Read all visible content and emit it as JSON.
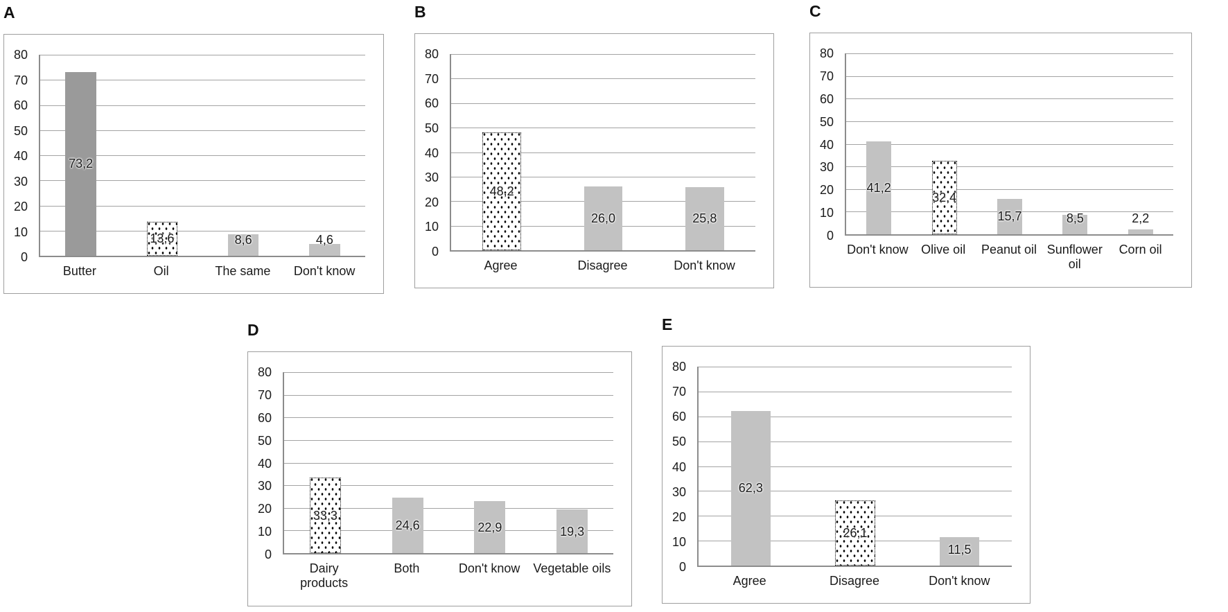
{
  "figure": {
    "description": "Five-panel survey results bar charts",
    "panel_labels": [
      "A",
      "B",
      "C",
      "D",
      "E"
    ]
  },
  "colors": {
    "background": "#ffffff",
    "bar_dark": "#9a9a9a",
    "bar_light": "#c2c2c2",
    "dotted_dot": "#000000",
    "gridline": "#a3a3a3",
    "axis_line": "#8c8c8c",
    "frame_border": "#9e9e9e",
    "text": "#262626"
  },
  "chart_data": [
    {
      "id": "A",
      "panel_label": "A",
      "type": "bar",
      "title": "",
      "xlabel": "",
      "ylabel": "",
      "ylim": [
        0,
        80
      ],
      "ytick_step": 10,
      "grid": true,
      "legend": "none",
      "categories": [
        "Butter",
        "Oil",
        "The same",
        "Don't know"
      ],
      "values": [
        73.2,
        13.6,
        8.6,
        4.6
      ],
      "value_labels": [
        "73,2",
        "13,6",
        "8,6",
        "4,6"
      ],
      "bar_styles": [
        "solid-dark",
        "dotted",
        "solid-light",
        "solid-light"
      ]
    },
    {
      "id": "B",
      "panel_label": "B",
      "type": "bar",
      "title": "",
      "xlabel": "",
      "ylabel": "",
      "ylim": [
        0,
        80
      ],
      "ytick_step": 10,
      "grid": true,
      "legend": "none",
      "categories": [
        "Agree",
        "Disagree",
        "Don't know"
      ],
      "values": [
        48.2,
        26.0,
        25.8
      ],
      "value_labels": [
        "48,2",
        "26,0",
        "25,8"
      ],
      "bar_styles": [
        "dotted",
        "solid-light",
        "solid-light"
      ]
    },
    {
      "id": "C",
      "panel_label": "C",
      "type": "bar",
      "title": "",
      "xlabel": "",
      "ylabel": "",
      "ylim": [
        0,
        80
      ],
      "ytick_step": 10,
      "grid": true,
      "legend": "none",
      "categories": [
        "Don't know",
        "Olive oil",
        "Peanut oil",
        "Sunflower\noil",
        "Corn oil"
      ],
      "values": [
        41.2,
        32.4,
        15.7,
        8.5,
        2.2
      ],
      "value_labels": [
        "41,2",
        "32,4",
        "15,7",
        "8,5",
        "2,2"
      ],
      "bar_styles": [
        "solid-light",
        "dotted",
        "solid-light",
        "solid-light",
        "solid-light"
      ]
    },
    {
      "id": "D",
      "panel_label": "D",
      "type": "bar",
      "title": "",
      "xlabel": "",
      "ylabel": "",
      "ylim": [
        0,
        80
      ],
      "ytick_step": 10,
      "grid": true,
      "legend": "none",
      "categories": [
        "Dairy\nproducts",
        "Both",
        "Don't know",
        "Vegetable oils"
      ],
      "values": [
        33.3,
        24.6,
        22.9,
        19.3
      ],
      "value_labels": [
        "33,3",
        "24,6",
        "22,9",
        "19,3"
      ],
      "bar_styles": [
        "dotted",
        "solid-light",
        "solid-light",
        "solid-light"
      ]
    },
    {
      "id": "E",
      "panel_label": "E",
      "type": "bar",
      "title": "",
      "xlabel": "",
      "ylabel": "",
      "ylim": [
        0,
        80
      ],
      "ytick_step": 10,
      "grid": true,
      "legend": "none",
      "categories": [
        "Agree",
        "Disagree",
        "Don't know"
      ],
      "values": [
        62.3,
        26.1,
        11.5
      ],
      "value_labels": [
        "62,3",
        "26,1",
        "11,5"
      ],
      "bar_styles": [
        "solid-light",
        "dotted",
        "solid-light"
      ]
    }
  ]
}
